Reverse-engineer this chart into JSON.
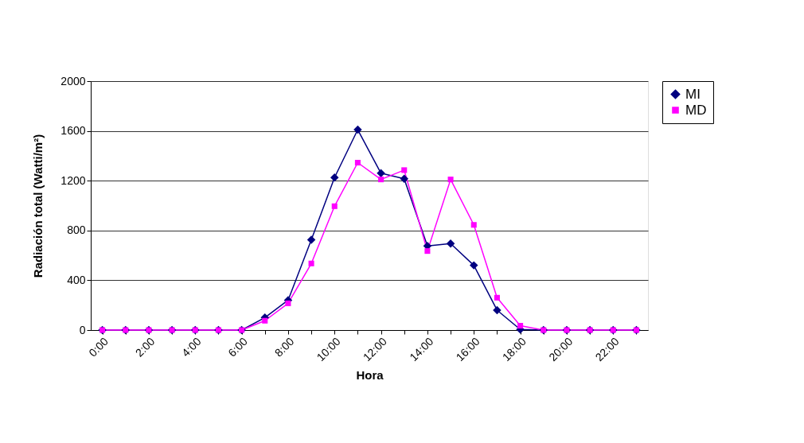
{
  "chart_data": {
    "type": "line",
    "xlabel": "Hora",
    "ylabel": "Radiación total (Watti/m²)",
    "categories": [
      "0:00",
      null,
      "2:00",
      null,
      "4:00",
      null,
      "6:00",
      null,
      "8:00",
      null,
      "10:00",
      null,
      "12:00",
      null,
      "14:00",
      null,
      "16:00",
      null,
      "18:00",
      null,
      "20:00",
      null,
      "22:00",
      null
    ],
    "series": [
      {
        "name": "MI",
        "color": "#000080",
        "marker": "diamond",
        "values": [
          0,
          0,
          0,
          0,
          0,
          0,
          0,
          100,
          240,
          725,
          1225,
          1610,
          1260,
          1215,
          675,
          695,
          520,
          160,
          5,
          0,
          0,
          0,
          0,
          0
        ]
      },
      {
        "name": "MD",
        "color": "#ff00ff",
        "marker": "square",
        "values": [
          0,
          0,
          0,
          0,
          0,
          0,
          0,
          75,
          215,
          535,
          995,
          1345,
          1210,
          1285,
          635,
          1210,
          845,
          260,
          35,
          0,
          0,
          0,
          0,
          0
        ]
      }
    ],
    "ylim": [
      0,
      2000
    ],
    "yticks": [
      0,
      400,
      800,
      1200,
      1600,
      2000
    ],
    "grid": "y",
    "legend": "right"
  }
}
